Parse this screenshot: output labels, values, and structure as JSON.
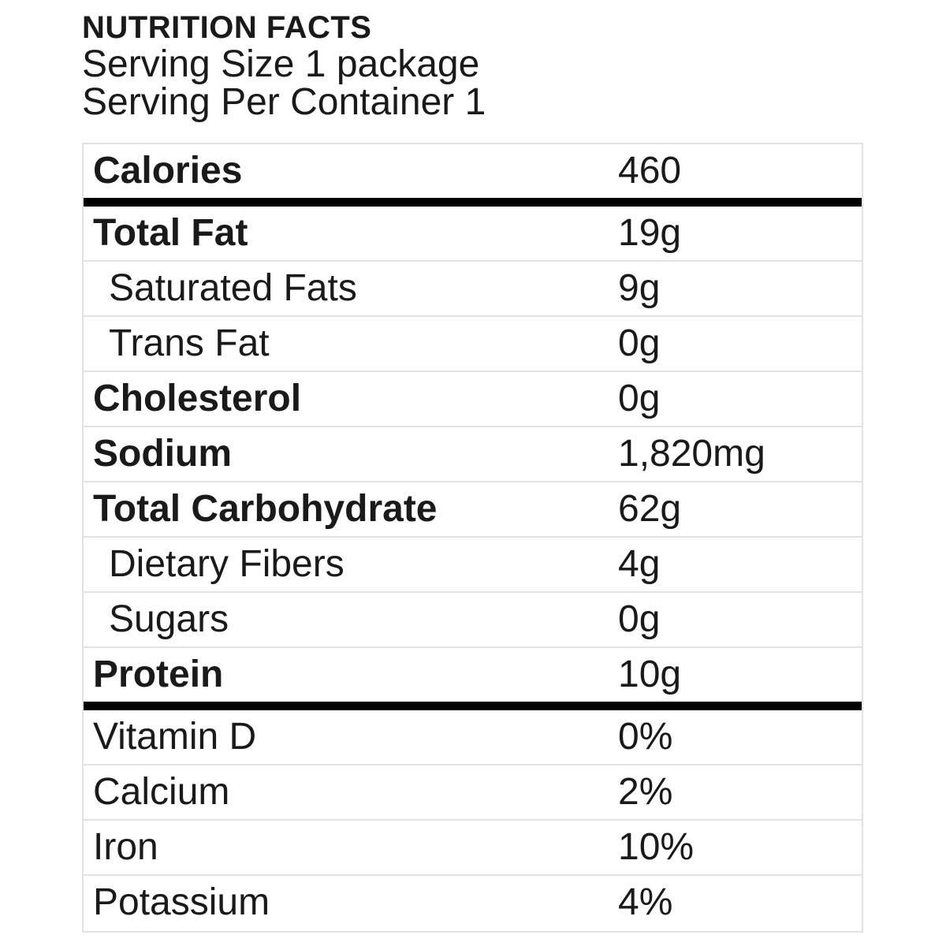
{
  "header": {
    "title": "NUTRITION FACTS",
    "serving_size": "Serving Size 1 package",
    "servings_per_container": "Serving Per Container 1"
  },
  "rows": [
    {
      "label": "Calories",
      "value": "460",
      "bold": true,
      "indent": false,
      "thick_after": true
    },
    {
      "label": "Total Fat",
      "value": "19g",
      "bold": true,
      "indent": false,
      "thick_after": false
    },
    {
      "label": "Saturated Fats",
      "value": "9g",
      "bold": false,
      "indent": true,
      "thick_after": false
    },
    {
      "label": "Trans Fat",
      "value": "0g",
      "bold": false,
      "indent": true,
      "thick_after": false
    },
    {
      "label": "Cholesterol",
      "value": "0g",
      "bold": true,
      "indent": false,
      "thick_after": false
    },
    {
      "label": "Sodium",
      "value": "1,820mg",
      "bold": true,
      "indent": false,
      "thick_after": false
    },
    {
      "label": "Total Carbohydrate",
      "value": "62g",
      "bold": true,
      "indent": false,
      "thick_after": false
    },
    {
      "label": "Dietary Fibers",
      "value": "4g",
      "bold": false,
      "indent": true,
      "thick_after": false
    },
    {
      "label": "Sugars",
      "value": "0g",
      "bold": false,
      "indent": true,
      "thick_after": false
    },
    {
      "label": "Protein",
      "value": "10g",
      "bold": true,
      "indent": false,
      "thick_after": true
    },
    {
      "label": "Vitamin D",
      "value": "0%",
      "bold": false,
      "indent": false,
      "thick_after": false
    },
    {
      "label": "Calcium",
      "value": "2%",
      "bold": false,
      "indent": false,
      "thick_after": false
    },
    {
      "label": "Iron",
      "value": "10%",
      "bold": false,
      "indent": false,
      "thick_after": false
    },
    {
      "label": "Potassium",
      "value": "4%",
      "bold": false,
      "indent": false,
      "thick_after": false
    }
  ],
  "colors": {
    "text": "#1a1a1a",
    "rule_thick": "#000000",
    "rule_thin": "#e2e2e2",
    "background": "#ffffff"
  }
}
